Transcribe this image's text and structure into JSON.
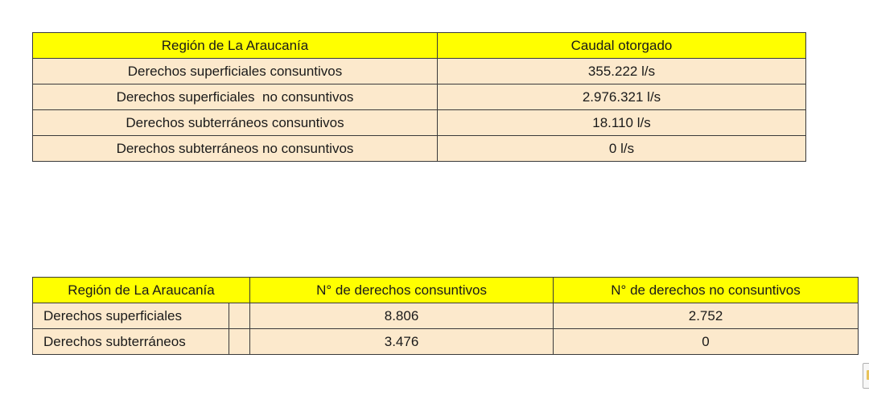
{
  "table_caudal": {
    "header": [
      "Región de La Araucanía",
      "Caudal otorgado"
    ],
    "rows": [
      [
        "Derechos superficiales consuntivos",
        "355.222 l/s"
      ],
      [
        "Derechos superficiales  no consuntivos",
        "2.976.321 l/s"
      ],
      [
        "Derechos subterráneos consuntivos",
        "18.110 l/s"
      ],
      [
        "Derechos subterráneos no consuntivos",
        "0 l/s"
      ]
    ]
  },
  "table_derechos": {
    "header": [
      "Región de La Araucanía",
      "N° de derechos consuntivos",
      "N° de derechos no consuntivos"
    ],
    "rows": [
      [
        "Derechos superficiales",
        "8.806",
        "2.752"
      ],
      [
        "Derechos subterráneos",
        "3.476",
        "0"
      ]
    ]
  },
  "colors": {
    "header_fill": "#ffff00",
    "row_fill": "#fce9cc",
    "border": "#3a3a3a"
  },
  "icons": [
    "paste-options-icon"
  ]
}
